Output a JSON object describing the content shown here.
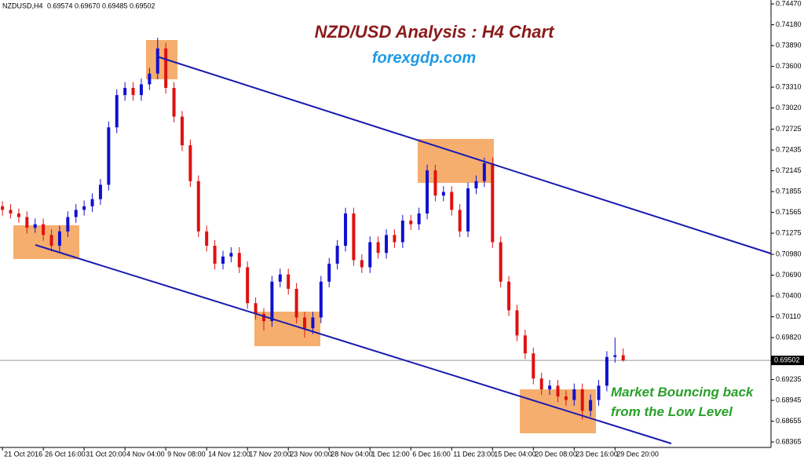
{
  "chart_data": {
    "type": "candlestick",
    "title": "NZD/USD Analysis : H4 Chart",
    "subtitle": "forexgdp.com",
    "annotation": [
      "Market Bouncing back",
      "from the Low Level"
    ],
    "symbol": "NZDUSD,H4",
    "last_bar": {
      "values": [
        0.69574,
        0.6967,
        0.69485,
        0.69502
      ],
      "value_labels": [
        "0.69574",
        "0.69670",
        "0.69485",
        "0.69502"
      ]
    },
    "up_color": "#1010d0",
    "down_color": "#e01010",
    "xlim": [
      -0.3,
      94.1
    ],
    "ylim": [
      0.683,
      0.74525
    ],
    "xticks": [
      {
        "value": 0,
        "label": "21 Oct 2016"
      },
      {
        "value": 5,
        "label": "26 Oct 16:00"
      },
      {
        "value": 10,
        "label": "31 Oct 20:00"
      },
      {
        "value": 15,
        "label": "4 Nov 04:00"
      },
      {
        "value": 20,
        "label": "9 Nov 08:00"
      },
      {
        "value": 25,
        "label": "14 Nov 12:00"
      },
      {
        "value": 30,
        "label": "17 Nov 20:00"
      },
      {
        "value": 35,
        "label": "23 Nov 00:00"
      },
      {
        "value": 40,
        "label": "28 Nov 04:00"
      },
      {
        "value": 45,
        "label": "1 Dec 12:00"
      },
      {
        "value": 50,
        "label": "6 Dec 16:00"
      },
      {
        "value": 55,
        "label": "11 Dec 23:00"
      },
      {
        "value": 60,
        "label": "15 Dec 04:00"
      },
      {
        "value": 65,
        "label": "20 Dec 08:00"
      },
      {
        "value": 70,
        "label": "23 Dec 16:00"
      },
      {
        "value": 75,
        "label": "29 Dec 20:00"
      }
    ],
    "yticks": [
      {
        "value": 0.7447,
        "label": "0.74470"
      },
      {
        "value": 0.7418,
        "label": "0.74180"
      },
      {
        "value": 0.7389,
        "label": "0.73890"
      },
      {
        "value": 0.736,
        "label": "0.73600"
      },
      {
        "value": 0.7331,
        "label": "0.73310"
      },
      {
        "value": 0.7302,
        "label": "0.73020"
      },
      {
        "value": 0.72725,
        "label": "0.72725"
      },
      {
        "value": 0.72435,
        "label": "0.72435"
      },
      {
        "value": 0.72145,
        "label": "0.72145"
      },
      {
        "value": 0.71855,
        "label": "0.71855"
      },
      {
        "value": 0.71565,
        "label": "0.71565"
      },
      {
        "value": 0.71275,
        "label": "0.71275"
      },
      {
        "value": 0.7098,
        "label": "0.70980"
      },
      {
        "value": 0.7069,
        "label": "0.70690"
      },
      {
        "value": 0.704,
        "label": "0.70400"
      },
      {
        "value": 0.7011,
        "label": "0.70110"
      },
      {
        "value": 0.6982,
        "label": "0.69820"
      },
      {
        "value": 0.69235,
        "label": "0.69235"
      },
      {
        "value": 0.68945,
        "label": "0.68945"
      },
      {
        "value": 0.68655,
        "label": "0.68655"
      },
      {
        "value": 0.68365,
        "label": "0.68365"
      }
    ],
    "open": [
      0.7165,
      0.716,
      0.7155,
      0.715,
      0.7135,
      0.714,
      0.7125,
      0.711,
      0.713,
      0.715,
      0.716,
      0.7165,
      0.7175,
      0.7195,
      0.7275,
      0.732,
      0.733,
      0.732,
      0.7335,
      0.735,
      0.7385,
      0.733,
      0.729,
      0.725,
      0.72,
      0.713,
      0.711,
      0.7085,
      0.7095,
      0.71,
      0.708,
      0.703,
      0.7015,
      0.7005,
      0.706,
      0.707,
      0.705,
      0.701,
      0.6995,
      0.701,
      0.706,
      0.7085,
      0.711,
      0.7155,
      0.709,
      0.708,
      0.7115,
      0.71,
      0.7125,
      0.7115,
      0.7145,
      0.714,
      0.7155,
      0.7215,
      0.718,
      0.7185,
      0.716,
      0.713,
      0.719,
      0.72,
      0.7225,
      0.7115,
      0.706,
      0.702,
      0.6985,
      0.696,
      0.6925,
      0.691,
      0.6915,
      0.69,
      0.6895,
      0.691,
      0.688,
      0.6895,
      0.6915,
      0.6955,
      0.69574
    ],
    "high": [
      0.7172,
      0.7168,
      0.7162,
      0.7158,
      0.7148,
      0.7148,
      0.7133,
      0.7138,
      0.7158,
      0.7168,
      0.7173,
      0.7183,
      0.7203,
      0.7283,
      0.7328,
      0.7338,
      0.7338,
      0.7343,
      0.7358,
      0.74,
      0.7393,
      0.7338,
      0.7298,
      0.7258,
      0.7208,
      0.7138,
      0.7118,
      0.7103,
      0.7108,
      0.7108,
      0.7088,
      0.7038,
      0.7023,
      0.7068,
      0.7078,
      0.7078,
      0.7058,
      0.7018,
      0.7018,
      0.7068,
      0.7093,
      0.7118,
      0.7163,
      0.7163,
      0.7098,
      0.7123,
      0.7123,
      0.7133,
      0.7133,
      0.7153,
      0.7153,
      0.7163,
      0.7223,
      0.7223,
      0.7193,
      0.7193,
      0.7168,
      0.7198,
      0.7208,
      0.7233,
      0.7233,
      0.7123,
      0.7068,
      0.7028,
      0.6993,
      0.6968,
      0.6933,
      0.6923,
      0.6923,
      0.6908,
      0.6918,
      0.6918,
      0.6903,
      0.6923,
      0.6963,
      0.6982,
      0.6967
    ],
    "low": [
      0.7152,
      0.7148,
      0.7142,
      0.7127,
      0.7128,
      0.7117,
      0.7102,
      0.7102,
      0.7122,
      0.7142,
      0.7152,
      0.7157,
      0.7167,
      0.7187,
      0.7267,
      0.7312,
      0.7312,
      0.7312,
      0.7327,
      0.7342,
      0.7322,
      0.7282,
      0.7242,
      0.7192,
      0.7122,
      0.7102,
      0.7077,
      0.7077,
      0.7087,
      0.7072,
      0.7022,
      0.7007,
      0.6992,
      0.6997,
      0.7052,
      0.7042,
      0.7002,
      0.6982,
      0.6987,
      0.7002,
      0.7052,
      0.7077,
      0.7102,
      0.7082,
      0.7072,
      0.7072,
      0.7092,
      0.7092,
      0.7107,
      0.7107,
      0.7132,
      0.7132,
      0.7147,
      0.7172,
      0.7172,
      0.7152,
      0.7122,
      0.7122,
      0.7182,
      0.7192,
      0.7107,
      0.7052,
      0.7012,
      0.6977,
      0.6952,
      0.6917,
      0.6902,
      0.6902,
      0.6892,
      0.6887,
      0.6887,
      0.6868,
      0.6872,
      0.6887,
      0.6907,
      0.6947,
      0.69485
    ],
    "close": [
      0.716,
      0.7155,
      0.715,
      0.7135,
      0.714,
      0.7125,
      0.711,
      0.713,
      0.715,
      0.716,
      0.7165,
      0.7175,
      0.7195,
      0.7275,
      0.732,
      0.733,
      0.732,
      0.7335,
      0.735,
      0.7385,
      0.733,
      0.729,
      0.725,
      0.72,
      0.713,
      0.711,
      0.7085,
      0.7095,
      0.71,
      0.708,
      0.703,
      0.7015,
      0.7005,
      0.706,
      0.707,
      0.705,
      0.701,
      0.6995,
      0.701,
      0.706,
      0.7085,
      0.711,
      0.7155,
      0.709,
      0.708,
      0.7115,
      0.71,
      0.7125,
      0.7115,
      0.7145,
      0.714,
      0.7155,
      0.7215,
      0.718,
      0.7185,
      0.716,
      0.713,
      0.719,
      0.72,
      0.7225,
      0.7115,
      0.706,
      0.702,
      0.6985,
      0.696,
      0.6925,
      0.691,
      0.6915,
      0.69,
      0.6895,
      0.691,
      0.688,
      0.6895,
      0.6915,
      0.6955,
      0.69574,
      0.69502
    ]
  }
}
